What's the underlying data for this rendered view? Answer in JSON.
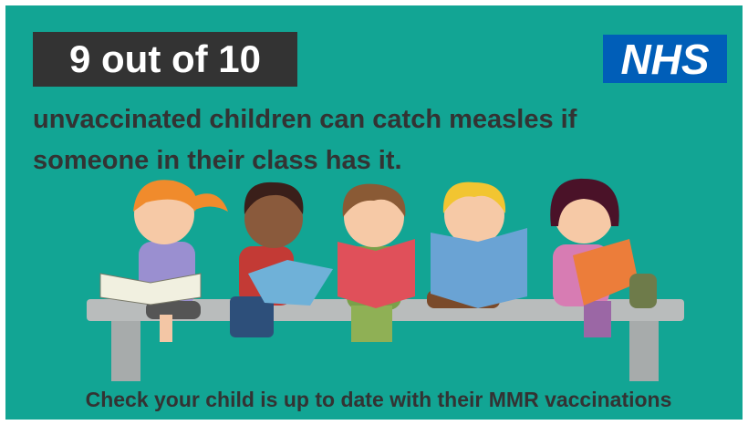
{
  "headline": "9 out of 10",
  "logo": "NHS",
  "body": {
    "lines": [
      "unvaccinated children can catch measles if",
      "someone in their class has it."
    ]
  },
  "footer": "Check your child is up to date with their MMR vaccinations"
}
